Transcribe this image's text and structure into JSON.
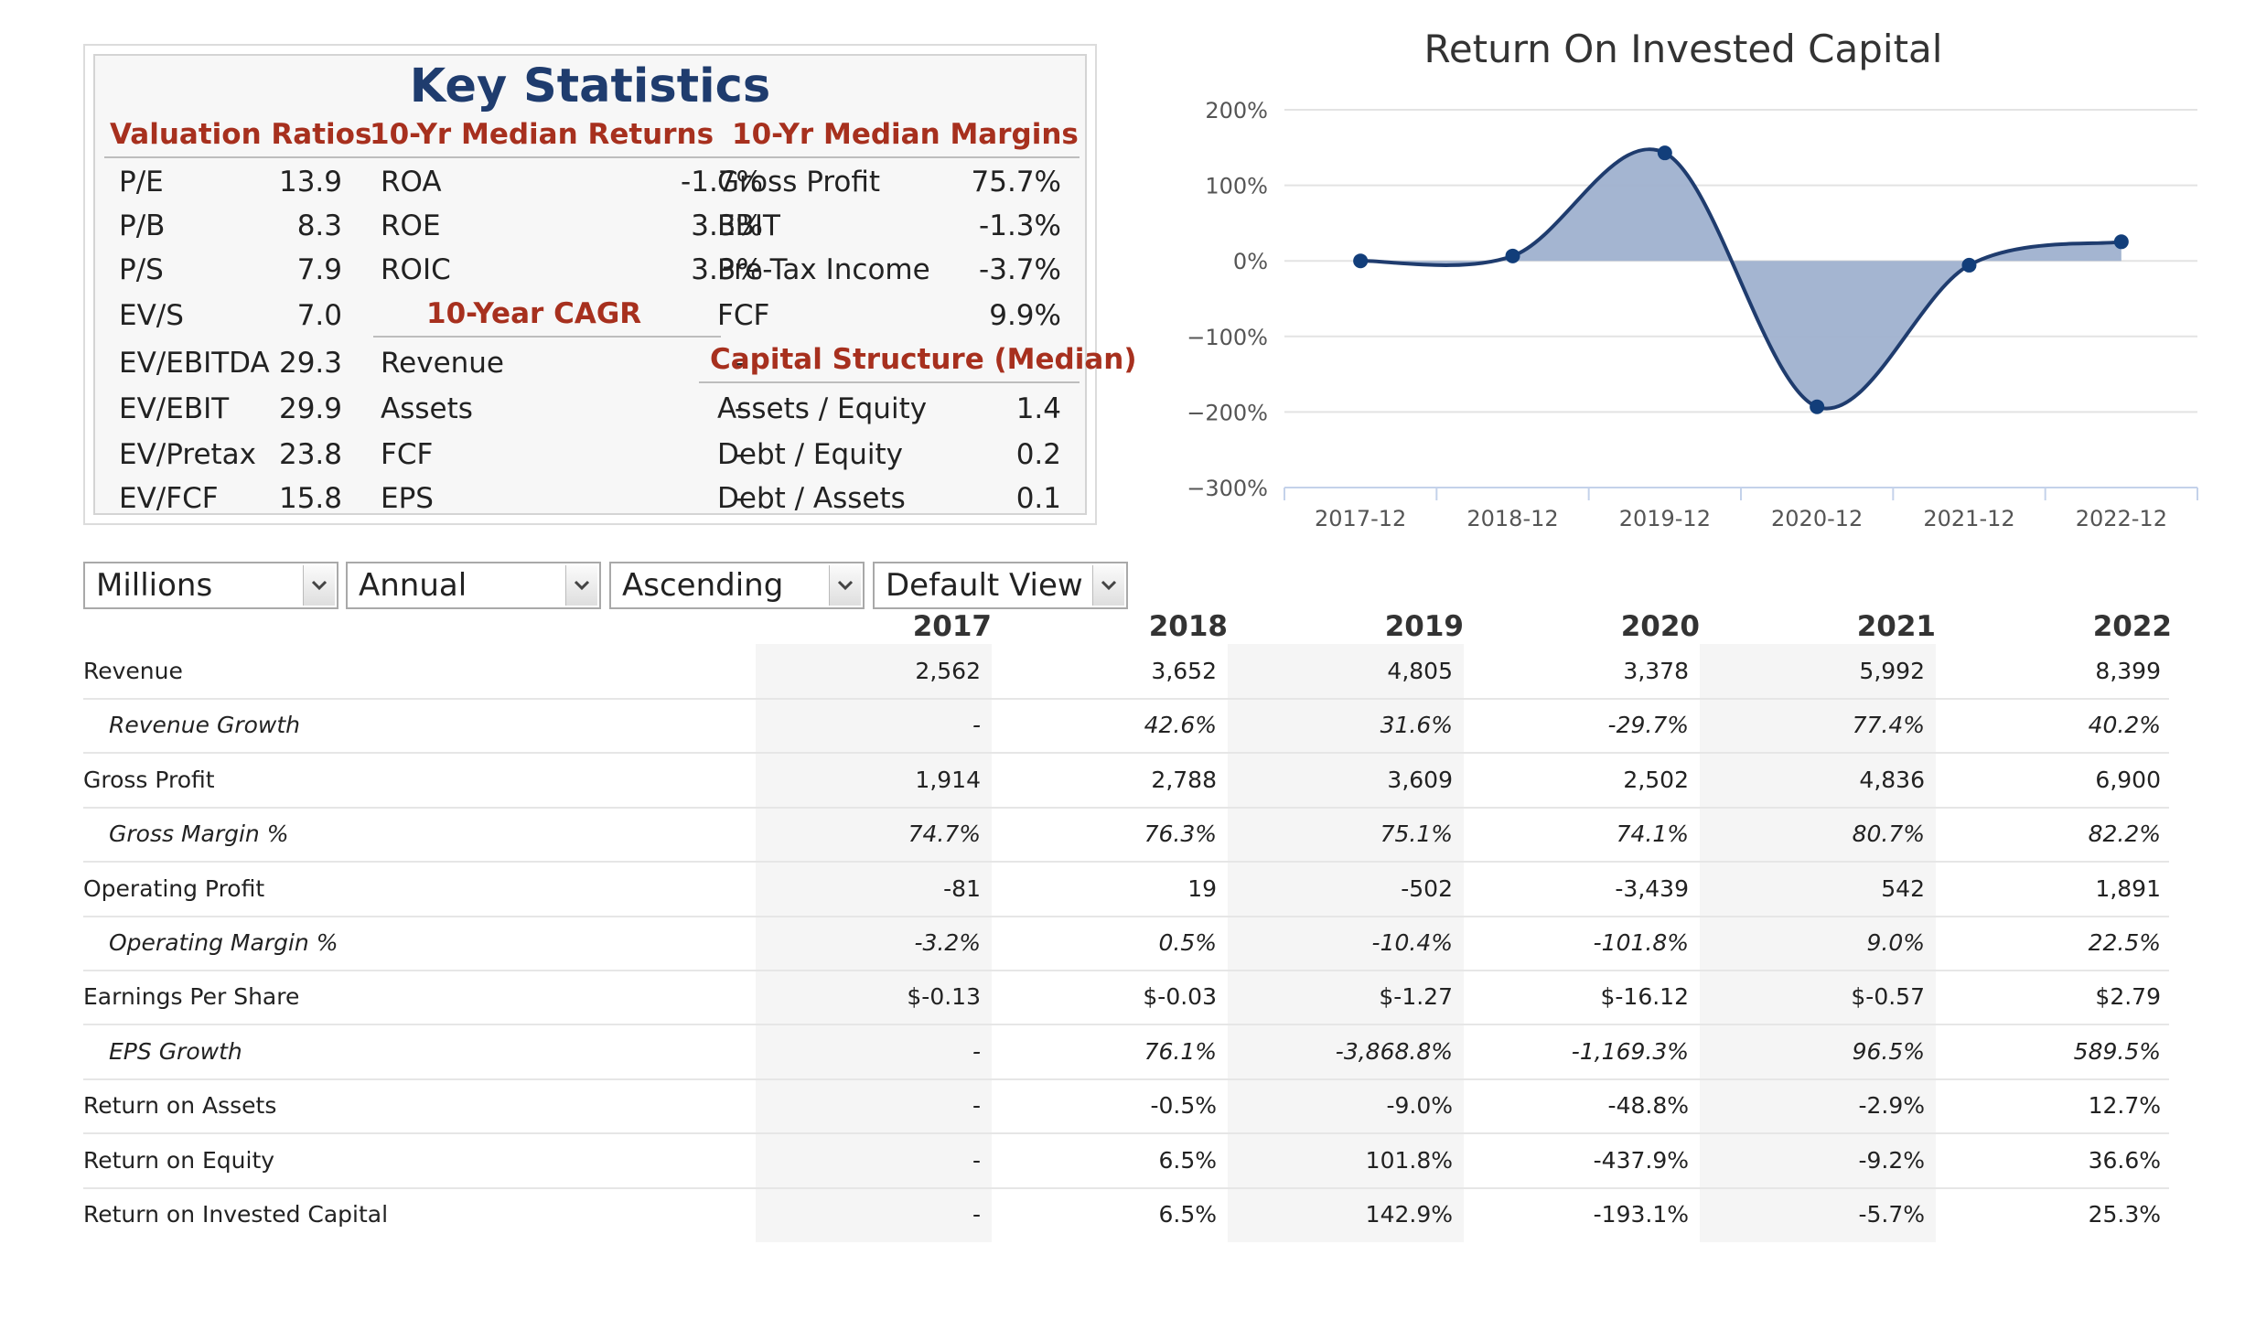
{
  "key_statistics": {
    "title": "Key Statistics",
    "valuation_ratios": {
      "heading": "Valuation Ratios",
      "rows": [
        {
          "label": "P/E",
          "value": "13.9"
        },
        {
          "label": "P/B",
          "value": "8.3"
        },
        {
          "label": "P/S",
          "value": "7.9"
        },
        {
          "label": "EV/S",
          "value": "7.0"
        },
        {
          "label": "EV/EBITDA",
          "value": "29.3"
        },
        {
          "label": "EV/EBIT",
          "value": "29.9"
        },
        {
          "label": "EV/Pretax",
          "value": "23.8"
        },
        {
          "label": "EV/FCF",
          "value": "15.8"
        }
      ]
    },
    "median_returns": {
      "heading": "10-Yr Median Returns",
      "rows": [
        {
          "label": "ROA",
          "value": "-1.7%"
        },
        {
          "label": "ROE",
          "value": "3.3%"
        },
        {
          "label": "ROIC",
          "value": "3.3%"
        }
      ]
    },
    "cagr": {
      "heading": "10-Year CAGR",
      "rows": [
        {
          "label": "Revenue",
          "value": "-"
        },
        {
          "label": "Assets",
          "value": "-"
        },
        {
          "label": "FCF",
          "value": "-"
        },
        {
          "label": "EPS",
          "value": "-"
        }
      ]
    },
    "median_margins": {
      "heading": "10-Yr Median Margins",
      "rows": [
        {
          "label": "Gross Profit",
          "value": "75.7%"
        },
        {
          "label": "EBIT",
          "value": "-1.3%"
        },
        {
          "label": "Pre-Tax Income",
          "value": "-3.7%"
        },
        {
          "label": "FCF",
          "value": "9.9%"
        }
      ]
    },
    "capital_structure": {
      "heading": "Capital Structure (Median)",
      "rows": [
        {
          "label": "Assets / Equity",
          "value": "1.4"
        },
        {
          "label": "Debt / Equity",
          "value": "0.2"
        },
        {
          "label": "Debt / Assets",
          "value": "0.1"
        }
      ]
    }
  },
  "chart_data": {
    "type": "area",
    "title": "Return On Invested Capital",
    "categories": [
      "2017-12",
      "2018-12",
      "2019-12",
      "2020-12",
      "2021-12",
      "2022-12"
    ],
    "values": [
      0,
      6.5,
      142.9,
      -193.1,
      -5.7,
      25.3
    ],
    "y_ticks": [
      "200%",
      "100%",
      "0%",
      "−100%",
      "−200%",
      "−300%"
    ],
    "ylim": [
      -300,
      200
    ],
    "grid": true,
    "colors": {
      "line": "#1f3c6e",
      "fill": "#9fb1cf",
      "marker": "#123e7a"
    }
  },
  "controls": {
    "units": "Millions",
    "period": "Annual",
    "order": "Ascending",
    "view": "Default View"
  },
  "table": {
    "years": [
      "2017",
      "2018",
      "2019",
      "2020",
      "2021",
      "2022"
    ],
    "rows": [
      {
        "label": "Revenue",
        "italic": false,
        "values": [
          "2,562",
          "3,652",
          "4,805",
          "3,378",
          "5,992",
          "8,399"
        ]
      },
      {
        "label": "Revenue Growth",
        "italic": true,
        "values": [
          "-",
          "42.6%",
          "31.6%",
          "-29.7%",
          "77.4%",
          "40.2%"
        ]
      },
      {
        "label": "Gross Profit",
        "italic": false,
        "values": [
          "1,914",
          "2,788",
          "3,609",
          "2,502",
          "4,836",
          "6,900"
        ]
      },
      {
        "label": "Gross Margin %",
        "italic": true,
        "values": [
          "74.7%",
          "76.3%",
          "75.1%",
          "74.1%",
          "80.7%",
          "82.2%"
        ]
      },
      {
        "label": "Operating Profit",
        "italic": false,
        "values": [
          "-81",
          "19",
          "-502",
          "-3,439",
          "542",
          "1,891"
        ]
      },
      {
        "label": "Operating Margin %",
        "italic": true,
        "values": [
          "-3.2%",
          "0.5%",
          "-10.4%",
          "-101.8%",
          "9.0%",
          "22.5%"
        ]
      },
      {
        "label": "Earnings Per Share",
        "italic": false,
        "values": [
          "$-0.13",
          "$-0.03",
          "$-1.27",
          "$-16.12",
          "$-0.57",
          "$2.79"
        ]
      },
      {
        "label": "EPS Growth",
        "italic": true,
        "values": [
          "-",
          "76.1%",
          "-3,868.8%",
          "-1,169.3%",
          "96.5%",
          "589.5%"
        ]
      },
      {
        "label": "Return on Assets",
        "italic": false,
        "values": [
          "-",
          "-0.5%",
          "-9.0%",
          "-48.8%",
          "-2.9%",
          "12.7%"
        ]
      },
      {
        "label": "Return on Equity",
        "italic": false,
        "values": [
          "-",
          "6.5%",
          "101.8%",
          "-437.9%",
          "-9.2%",
          "36.6%"
        ]
      },
      {
        "label": "Return on Invested Capital",
        "italic": false,
        "values": [
          "-",
          "6.5%",
          "142.9%",
          "-193.1%",
          "-5.7%",
          "25.3%"
        ]
      }
    ]
  }
}
